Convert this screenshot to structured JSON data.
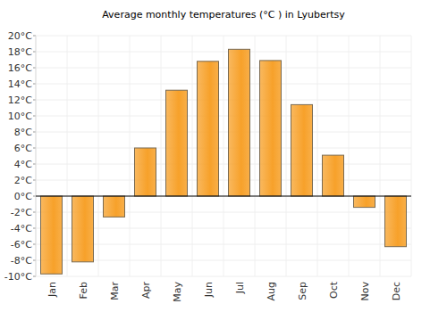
{
  "chart_data": {
    "type": "bar",
    "title": "Average monthly temperatures (°C ) in Lyubertsy",
    "categories": [
      "Jan",
      "Feb",
      "Mar",
      "Apr",
      "May",
      "Jun",
      "Jul",
      "Aug",
      "Sep",
      "Oct",
      "Nov",
      "Dec"
    ],
    "values": [
      -9.7,
      -8.2,
      -2.6,
      6.0,
      13.2,
      16.8,
      18.3,
      16.9,
      11.4,
      5.1,
      -1.4,
      -6.3
    ],
    "color": "#f7a12a",
    "ylim": [
      -10,
      20
    ],
    "yticks": [
      {
        "value": -10,
        "label": "-10°C"
      },
      {
        "value": -8,
        "label": "-8°C"
      },
      {
        "value": -6,
        "label": "-6°C"
      },
      {
        "value": -4,
        "label": "-4°C"
      },
      {
        "value": -2,
        "label": "-2°C"
      },
      {
        "value": 0,
        "label": "0°C"
      },
      {
        "value": 2,
        "label": "2°C"
      },
      {
        "value": 4,
        "label": "4°C"
      },
      {
        "value": 6,
        "label": "6°C"
      },
      {
        "value": 8,
        "label": "8°C"
      },
      {
        "value": 10,
        "label": "10°C"
      },
      {
        "value": 12,
        "label": "12°C"
      },
      {
        "value": 14,
        "label": "14°C"
      },
      {
        "value": 16,
        "label": "16°C"
      },
      {
        "value": 18,
        "label": "18°C"
      },
      {
        "value": 20,
        "label": "20°C"
      }
    ],
    "grid": true
  }
}
